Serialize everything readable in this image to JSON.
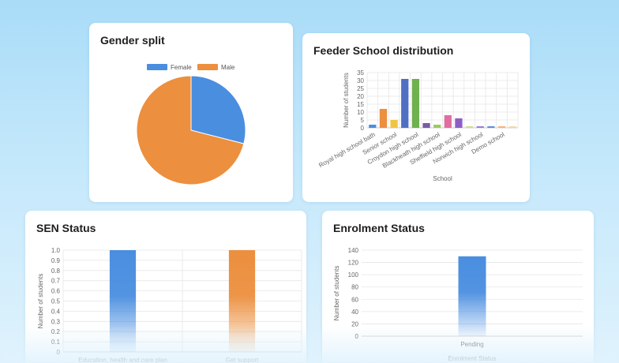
{
  "colors": {
    "blue": "#4a8ee0",
    "orange": "#ec8f3e",
    "grid": "#e6e6e6"
  },
  "cards": {
    "gender": {
      "title": "Gender split"
    },
    "feeder": {
      "title": "Feeder School distribution"
    },
    "sen": {
      "title": "SEN Status"
    },
    "enrol": {
      "title": "Enrolment Status"
    }
  },
  "chart_data": [
    {
      "id": "gender",
      "type": "pie",
      "title": "Gender split",
      "legend_position": "top",
      "slices": [
        {
          "name": "Female",
          "value": 29,
          "color": "#4a8ee0"
        },
        {
          "name": "Male",
          "value": 71,
          "color": "#ec8f3e"
        }
      ]
    },
    {
      "id": "feeder",
      "type": "bar",
      "title": "Feeder School distribution",
      "xlabel": "School",
      "ylabel": "Number of students",
      "ylim": [
        0,
        35
      ],
      "yticks": [
        0,
        5,
        10,
        15,
        20,
        25,
        30,
        35
      ],
      "grid": true,
      "categories": [
        "Royal high school bath",
        "",
        "Senior school",
        "",
        "Croydon high school",
        "",
        "Blackheath high school",
        "",
        "Sheffield high school",
        "",
        "Norwich high school",
        "",
        "Demo school",
        ""
      ],
      "values": [
        2,
        12,
        5,
        31,
        31,
        3,
        2,
        8,
        6,
        1,
        1,
        1,
        1,
        1
      ],
      "bar_colors": [
        "#4a8ee0",
        "#ec8f3e",
        "#f2c443",
        "#4e6fc4",
        "#6fb04f",
        "#7b5aa6",
        "#9acd5a",
        "#df6fa0",
        "#8d5fc6",
        "#c7df8f",
        "#9b7fd4",
        "#5b8fd9",
        "#f5b377",
        "#f0d9a8"
      ]
    },
    {
      "id": "sen",
      "type": "bar",
      "title": "SEN Status",
      "ylabel": "Number of students",
      "ylim": [
        0,
        1
      ],
      "yticks": [
        0,
        0.1,
        0.2,
        0.3,
        0.4,
        0.5,
        0.6,
        0.7,
        0.8,
        0.9,
        1.0
      ],
      "ytick_labels": [
        "0",
        "0.1",
        "0.2",
        "0.3",
        "0.4",
        "0.5",
        "0.6",
        "0.7",
        "0.8",
        "0.9",
        "1.0"
      ],
      "grid": true,
      "categories": [
        "Education, health and care plan",
        "Get support"
      ],
      "values": [
        1,
        1
      ],
      "bar_colors": [
        "#4a8ee0",
        "#ec8f3e"
      ]
    },
    {
      "id": "enrol",
      "type": "bar",
      "title": "Enrolment Status",
      "xlabel": "Enrolment Status",
      "ylabel": "Number of students",
      "ylim": [
        0,
        140
      ],
      "yticks": [
        0,
        20,
        40,
        60,
        80,
        100,
        120,
        140
      ],
      "grid": true,
      "categories": [
        "Pending"
      ],
      "values": [
        130
      ],
      "bar_colors": [
        "#4a8ee0"
      ]
    }
  ]
}
